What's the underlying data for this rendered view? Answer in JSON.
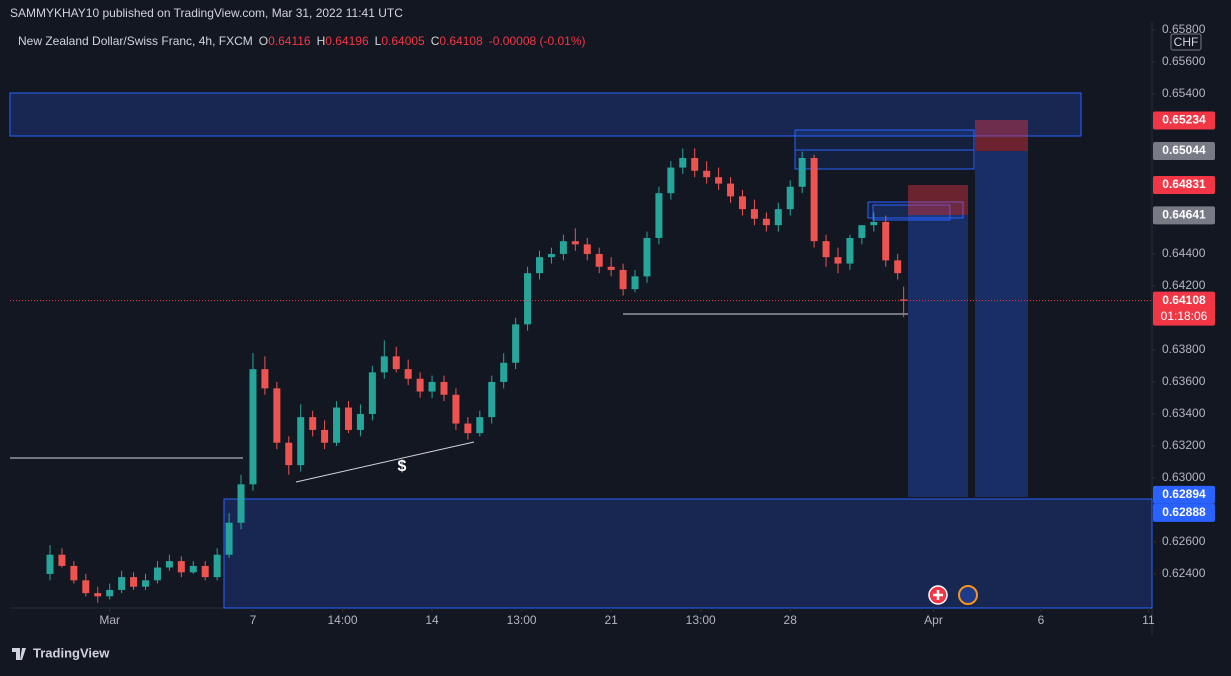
{
  "header": {
    "publisher": "SAMMYKHAY10 published on TradingView.com, Mar 31, 2022 11:41 UTC",
    "symbol": "New Zealand Dollar/Swiss Franc, 4h, FXCM",
    "ohlc": [
      {
        "key": "O",
        "text": "0.64116"
      },
      {
        "key": "H",
        "text": "0.64196"
      },
      {
        "key": "L",
        "text": "0.64005"
      },
      {
        "key": "C",
        "text": "0.64108"
      }
    ],
    "change": "-0.00008 (-0.01%)",
    "currency": "CHF",
    "annotation": "$",
    "countdown": "01:18:06",
    "brand": "TradingView"
  },
  "chart_data": {
    "type": "candlestick",
    "up_color": "#26a69a",
    "down_color": "#ef5350",
    "x": [
      -34,
      -32,
      -30,
      -28,
      -26,
      -24,
      -22,
      -20,
      -18,
      -16,
      -14,
      -12,
      -10,
      -8,
      -6,
      -4,
      -2,
      0,
      2,
      4,
      6,
      8,
      10,
      12,
      14,
      16,
      18,
      20,
      22,
      24,
      26,
      28,
      30,
      32,
      34,
      36,
      38,
      40,
      42,
      44,
      46,
      48,
      50,
      52,
      54,
      56,
      58,
      60,
      62,
      64,
      66,
      68,
      70,
      72,
      74,
      76,
      78,
      80,
      82,
      84,
      86,
      88,
      90,
      92,
      94,
      96,
      98,
      100,
      102,
      104,
      106,
      108,
      109
    ],
    "open": [
      0.624,
      0.6252,
      0.6245,
      0.6236,
      0.6228,
      0.6226,
      0.623,
      0.6238,
      0.6232,
      0.6236,
      0.6244,
      0.6248,
      0.6241,
      0.6245,
      0.6238,
      0.6252,
      0.6272,
      0.6296,
      0.6368,
      0.6356,
      0.6322,
      0.6308,
      0.6338,
      0.633,
      0.6322,
      0.6344,
      0.633,
      0.634,
      0.6366,
      0.6376,
      0.6368,
      0.6362,
      0.6354,
      0.636,
      0.6352,
      0.6334,
      0.6328,
      0.6338,
      0.636,
      0.6372,
      0.6396,
      0.6428,
      0.6438,
      0.644,
      0.6448,
      0.6446,
      0.644,
      0.6432,
      0.643,
      0.6418,
      0.6426,
      0.645,
      0.6478,
      0.6494,
      0.65,
      0.6492,
      0.6488,
      0.6484,
      0.6476,
      0.6468,
      0.6462,
      0.6458,
      0.6468,
      0.6482,
      0.65,
      0.6448,
      0.6438,
      0.6434,
      0.645,
      0.6458,
      0.646,
      0.6436,
      0.64116
    ],
    "high": [
      0.6258,
      0.6256,
      0.6248,
      0.624,
      0.6232,
      0.6234,
      0.6242,
      0.6241,
      0.624,
      0.6248,
      0.6252,
      0.6251,
      0.6248,
      0.6248,
      0.6256,
      0.6278,
      0.6302,
      0.6378,
      0.6376,
      0.636,
      0.6326,
      0.6346,
      0.6342,
      0.6336,
      0.6348,
      0.6348,
      0.6346,
      0.637,
      0.6386,
      0.6382,
      0.6374,
      0.6366,
      0.6364,
      0.6364,
      0.6356,
      0.6338,
      0.6342,
      0.6364,
      0.6378,
      0.64,
      0.6432,
      0.6442,
      0.6444,
      0.6452,
      0.6456,
      0.645,
      0.6444,
      0.6438,
      0.6434,
      0.643,
      0.6454,
      0.6482,
      0.6498,
      0.6506,
      0.6506,
      0.6498,
      0.6494,
      0.6488,
      0.648,
      0.6474,
      0.6466,
      0.6472,
      0.6486,
      0.6504,
      0.6502,
      0.6452,
      0.6444,
      0.6452,
      0.6458,
      0.6466,
      0.6464,
      0.644,
      0.64196
    ],
    "low": [
      0.6236,
      0.6244,
      0.6234,
      0.6226,
      0.6222,
      0.6224,
      0.6228,
      0.623,
      0.623,
      0.6234,
      0.6242,
      0.6238,
      0.624,
      0.6236,
      0.6236,
      0.625,
      0.6268,
      0.6292,
      0.6352,
      0.6318,
      0.6302,
      0.6304,
      0.6326,
      0.6318,
      0.632,
      0.6328,
      0.6326,
      0.6336,
      0.6362,
      0.6366,
      0.6358,
      0.635,
      0.635,
      0.6348,
      0.633,
      0.6324,
      0.6326,
      0.6334,
      0.6356,
      0.6368,
      0.6392,
      0.6424,
      0.6434,
      0.6436,
      0.6442,
      0.6436,
      0.6428,
      0.6426,
      0.6414,
      0.6416,
      0.6422,
      0.6446,
      0.6474,
      0.649,
      0.6488,
      0.6484,
      0.648,
      0.6472,
      0.6464,
      0.6458,
      0.6454,
      0.6454,
      0.6464,
      0.6478,
      0.6444,
      0.6432,
      0.6428,
      0.643,
      0.6446,
      0.6454,
      0.6432,
      0.6424,
      0.64005
    ],
    "close": [
      0.6252,
      0.6245,
      0.6236,
      0.6228,
      0.6226,
      0.623,
      0.6238,
      0.6232,
      0.6236,
      0.6244,
      0.6248,
      0.6241,
      0.6245,
      0.6238,
      0.6252,
      0.6272,
      0.6296,
      0.6368,
      0.6356,
      0.6322,
      0.6308,
      0.6338,
      0.633,
      0.6322,
      0.6344,
      0.633,
      0.634,
      0.6366,
      0.6376,
      0.6368,
      0.6362,
      0.6354,
      0.636,
      0.6352,
      0.6334,
      0.6328,
      0.6338,
      0.636,
      0.6372,
      0.6396,
      0.6428,
      0.6438,
      0.644,
      0.6448,
      0.6446,
      0.644,
      0.6432,
      0.643,
      0.6418,
      0.6426,
      0.645,
      0.6478,
      0.6494,
      0.65,
      0.6492,
      0.6488,
      0.6484,
      0.6476,
      0.6468,
      0.6462,
      0.6458,
      0.6468,
      0.6482,
      0.65,
      0.6448,
      0.6438,
      0.6434,
      0.645,
      0.6458,
      0.646,
      0.6436,
      0.6428,
      0.64108
    ],
    "xlim": [
      -40.7,
      150.6
    ],
    "ylim": [
      0.62187,
      0.6585
    ],
    "xticks": [
      {
        "value": -24,
        "label": "Mar"
      },
      {
        "value": 0,
        "label": "7"
      },
      {
        "value": 15,
        "label": "14:00"
      },
      {
        "value": 30,
        "label": "14"
      },
      {
        "value": 45,
        "label": "13:00"
      },
      {
        "value": 60,
        "label": "21"
      },
      {
        "value": 75,
        "label": "13:00"
      },
      {
        "value": 90,
        "label": "28"
      },
      {
        "value": 114,
        "label": "Apr"
      },
      {
        "value": 132,
        "label": "6"
      },
      {
        "value": 150,
        "label": "11"
      }
    ],
    "yticks": [
      {
        "value": 0.658,
        "label": "0.65800"
      },
      {
        "value": 0.656,
        "label": "0.65600"
      },
      {
        "value": 0.654,
        "label": "0.65400"
      },
      {
        "value": 0.644,
        "label": "0.64400"
      },
      {
        "value": 0.642,
        "label": "0.64200"
      },
      {
        "value": 0.638,
        "label": "0.63800"
      },
      {
        "value": 0.636,
        "label": "0.63600"
      },
      {
        "value": 0.634,
        "label": "0.63400"
      },
      {
        "value": 0.632,
        "label": "0.63200"
      },
      {
        "value": 0.63,
        "label": "0.63000"
      },
      {
        "value": 0.626,
        "label": "0.62600"
      },
      {
        "value": 0.624,
        "label": "0.62400"
      }
    ],
    "price_labels": [
      {
        "value": 0.65234,
        "color": "#f23645"
      },
      {
        "value": 0.65044,
        "color": "#787b86"
      },
      {
        "value": 0.64831,
        "color": "#f23645"
      },
      {
        "value": 0.64641,
        "color": "#787b86"
      },
      {
        "value": 0.64108,
        "color": "#f23645"
      },
      {
        "value": 0.62894,
        "color": "#2962ff"
      },
      {
        "value": 0.62888,
        "color": "#2962ff"
      }
    ]
  }
}
